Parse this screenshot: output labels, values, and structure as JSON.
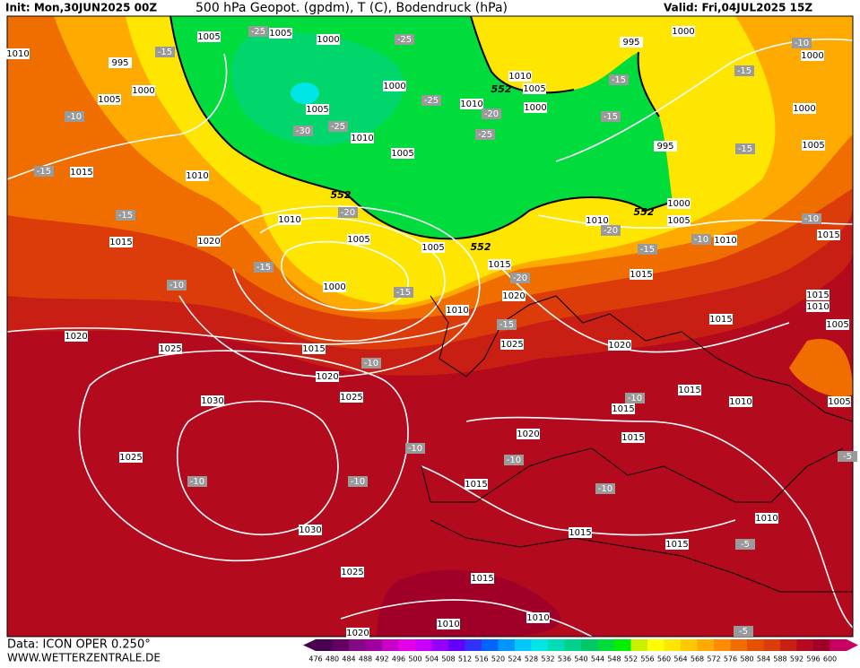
{
  "header": {
    "init": "Init: Mon,30JUN2025 00Z",
    "title": "500 hPa Geopot. (gpdm), T (C), Bodendruck (hPa)",
    "valid": "Valid: Fri,04JUL2025 15Z"
  },
  "footer": {
    "source": "Data: ICON OPER 0.250°",
    "site": "WWW.WETTERZENTRALE.DE"
  },
  "legend": {
    "labels": [
      476,
      480,
      484,
      488,
      492,
      496,
      500,
      504,
      508,
      512,
      516,
      520,
      524,
      528,
      532,
      536,
      540,
      544,
      548,
      552,
      556,
      560,
      564,
      568,
      572,
      576,
      580,
      584,
      588,
      592,
      596,
      600
    ],
    "colors": [
      "#4a0050",
      "#640064",
      "#820a82",
      "#a000a0",
      "#c800c8",
      "#e600e6",
      "#c800ff",
      "#9600ff",
      "#6400ff",
      "#3232ff",
      "#0064ff",
      "#0096ff",
      "#00c8ff",
      "#00e6e6",
      "#00dcb4",
      "#00d28c",
      "#00c864",
      "#00dc3c",
      "#00f000",
      "#c8f000",
      "#ffff00",
      "#ffe600",
      "#ffc800",
      "#ffaa00",
      "#ff8c00",
      "#f06e00",
      "#e65000",
      "#dc3c0a",
      "#c81e14",
      "#b40a1e",
      "#a00028",
      "#c80064"
    ]
  },
  "map": {
    "pressure_labels": [
      "1005",
      "1005",
      "1000",
      "1010",
      "995",
      "1000",
      "1005",
      "1000",
      "1005",
      "1010",
      "1005",
      "1015",
      "1010",
      "1010",
      "1005",
      "1005",
      "1015",
      "1020",
      "1000",
      "1010",
      "1020",
      "1015",
      "1010",
      "1005",
      "1000",
      "1010",
      "995",
      "1000",
      "1000",
      "1000",
      "995",
      "1005",
      "1000",
      "1005",
      "1010",
      "1010",
      "1015",
      "1015",
      "1015",
      "1010",
      "1005",
      "1015",
      "1020",
      "1025",
      "1015",
      "1025",
      "1020",
      "1020",
      "1025",
      "1030",
      "1015",
      "1010",
      "1015",
      "1005",
      "1020",
      "1015",
      "1025",
      "1015",
      "1030",
      "1015",
      "1015",
      "1010",
      "1025",
      "1015",
      "1010",
      "1010",
      "1020"
    ],
    "temperature_labels": [
      "-25",
      "-25",
      "-15",
      "-25",
      "-20",
      "-25",
      "-30",
      "-25",
      "-10",
      "-15",
      "-15",
      "-20",
      "-15",
      "-10",
      "-15",
      "-15",
      "-10",
      "-20",
      "-20",
      "-15",
      "-10",
      "-15",
      "-15",
      "-10",
      "-15",
      "-15",
      "-10",
      "-10",
      "-10",
      "-10",
      "-10",
      "-10",
      "-5",
      "-5",
      "-5",
      "-10"
    ],
    "geopotential_labels": [
      "552",
      "552",
      "552",
      "552"
    ]
  }
}
